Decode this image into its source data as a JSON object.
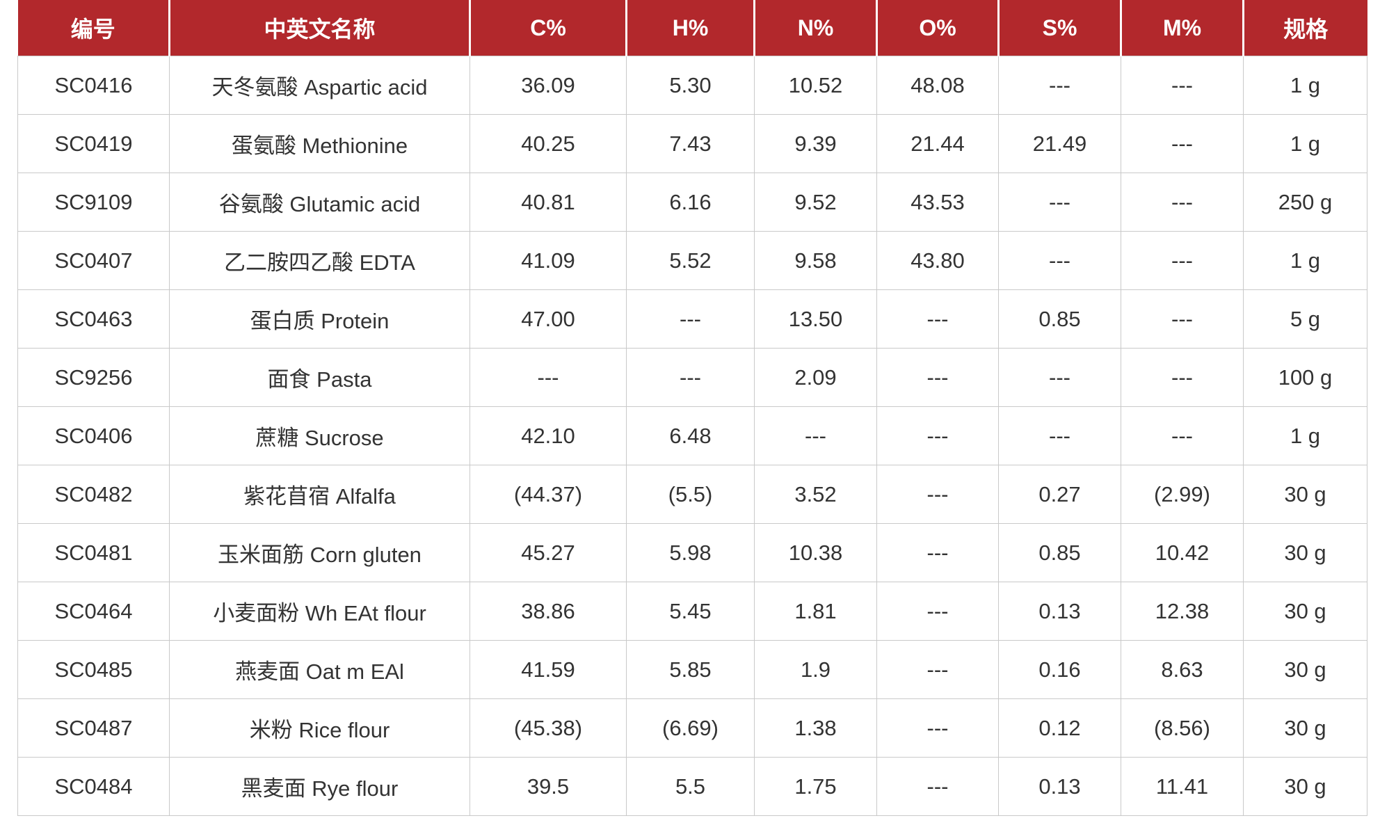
{
  "table": {
    "headers": [
      "编号",
      "中英文名称",
      "C%",
      "H%",
      "N%",
      "O%",
      "S%",
      "M%",
      "规格"
    ],
    "rows": [
      [
        "SC0416",
        "天冬氨酸 Aspartic acid",
        "36.09",
        "5.30",
        "10.52",
        "48.08",
        "---",
        "---",
        "1 g"
      ],
      [
        "SC0419",
        "蛋氨酸 Methionine",
        "40.25",
        "7.43",
        "9.39",
        "21.44",
        "21.49",
        "---",
        "1 g"
      ],
      [
        "SC9109",
        "谷氨酸 Glutamic acid",
        "40.81",
        "6.16",
        "9.52",
        "43.53",
        "---",
        "---",
        "250 g"
      ],
      [
        "SC0407",
        "乙二胺四乙酸 EDTA",
        "41.09",
        "5.52",
        "9.58",
        "43.80",
        "---",
        "---",
        "1 g"
      ],
      [
        "SC0463",
        "蛋白质 Protein",
        "47.00",
        "---",
        "13.50",
        "---",
        "0.85",
        "---",
        "5 g"
      ],
      [
        "SC9256",
        "面食 Pasta",
        "---",
        "---",
        "2.09",
        "---",
        "---",
        "---",
        "100 g"
      ],
      [
        "SC0406",
        "蔗糖 Sucrose",
        "42.10",
        "6.48",
        "---",
        "---",
        "---",
        "---",
        "1 g"
      ],
      [
        "SC0482",
        "紫花苜宿 Alfalfa",
        "(44.37)",
        "(5.5)",
        "3.52",
        "---",
        "0.27",
        "(2.99)",
        "30 g"
      ],
      [
        "SC0481",
        "玉米面筋 Corn gluten",
        "45.27",
        "5.98",
        "10.38",
        "---",
        "0.85",
        "10.42",
        "30 g"
      ],
      [
        "SC0464",
        "小麦面粉 Wh EAt flour",
        "38.86",
        "5.45",
        "1.81",
        "---",
        "0.13",
        "12.38",
        "30 g"
      ],
      [
        "SC0485",
        "燕麦面 Oat m EAl",
        "41.59",
        "5.85",
        "1.9",
        "---",
        "0.16",
        "8.63",
        "30 g"
      ],
      [
        "SC0487",
        "米粉 Rice flour",
        "(45.38)",
        "(6.69)",
        "1.38",
        "---",
        "0.12",
        "(8.56)",
        "30 g"
      ],
      [
        "SC0484",
        "黑麦面 Rye flour",
        "39.5",
        "5.5",
        "1.75",
        "---",
        "0.13",
        "11.41",
        "30 g"
      ]
    ]
  },
  "colors": {
    "header_bg": "#b2282c",
    "header_text": "#ffffff",
    "cell_text": "#333333",
    "grid": "#c9c9c9"
  }
}
